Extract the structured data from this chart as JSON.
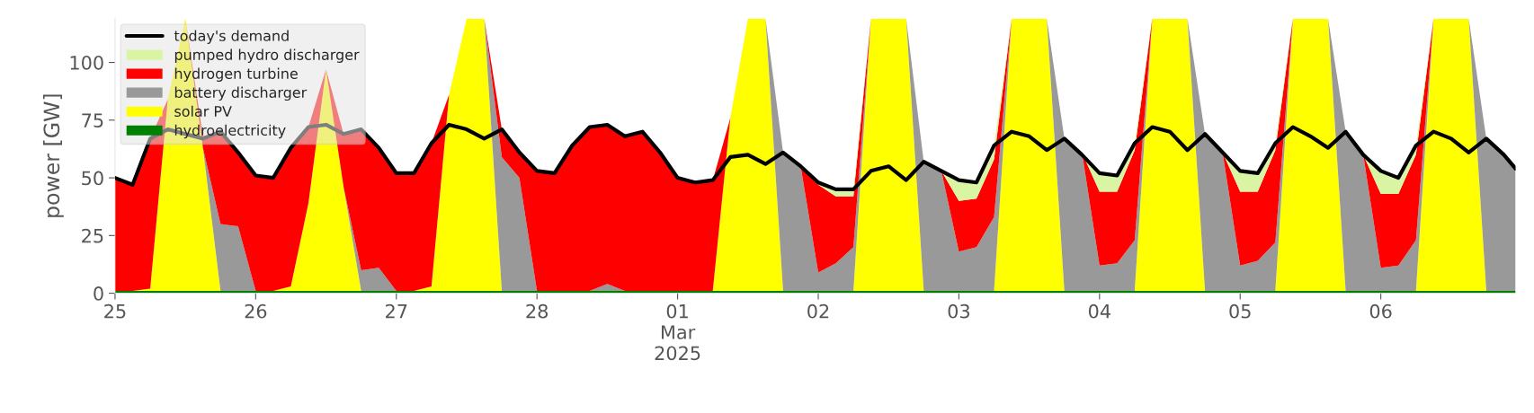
{
  "chart_data": {
    "type": "area",
    "stacked": true,
    "ylabel": "power [GW]",
    "x": [
      "2025-02-25T00:00",
      "2025-02-25T03:00",
      "2025-02-25T06:00",
      "2025-02-25T09:00",
      "2025-02-25T12:00",
      "2025-02-25T15:00",
      "2025-02-25T18:00",
      "2025-02-25T21:00",
      "2025-02-26T00:00",
      "2025-02-26T03:00",
      "2025-02-26T06:00",
      "2025-02-26T09:00",
      "2025-02-26T12:00",
      "2025-02-26T15:00",
      "2025-02-26T18:00",
      "2025-02-26T21:00",
      "2025-02-27T00:00",
      "2025-02-27T03:00",
      "2025-02-27T06:00",
      "2025-02-27T09:00",
      "2025-02-27T12:00",
      "2025-02-27T15:00",
      "2025-02-27T18:00",
      "2025-02-27T21:00",
      "2025-02-28T00:00",
      "2025-02-28T03:00",
      "2025-02-28T06:00",
      "2025-02-28T09:00",
      "2025-02-28T12:00",
      "2025-02-28T15:00",
      "2025-02-28T18:00",
      "2025-02-28T21:00",
      "2025-03-01T00:00",
      "2025-03-01T03:00",
      "2025-03-01T06:00",
      "2025-03-01T09:00",
      "2025-03-01T12:00",
      "2025-03-01T15:00",
      "2025-03-01T18:00",
      "2025-03-01T21:00",
      "2025-03-02T00:00",
      "2025-03-02T03:00",
      "2025-03-02T06:00",
      "2025-03-02T09:00",
      "2025-03-02T12:00",
      "2025-03-02T15:00",
      "2025-03-02T18:00",
      "2025-03-02T21:00",
      "2025-03-03T00:00",
      "2025-03-03T03:00",
      "2025-03-03T06:00",
      "2025-03-03T09:00",
      "2025-03-03T12:00",
      "2025-03-03T15:00",
      "2025-03-03T18:00",
      "2025-03-03T21:00",
      "2025-03-04T00:00",
      "2025-03-04T03:00",
      "2025-03-04T06:00",
      "2025-03-04T09:00",
      "2025-03-04T12:00",
      "2025-03-04T15:00",
      "2025-03-04T18:00",
      "2025-03-04T21:00",
      "2025-03-05T00:00",
      "2025-03-05T03:00",
      "2025-03-05T06:00",
      "2025-03-05T09:00",
      "2025-03-05T12:00",
      "2025-03-05T15:00",
      "2025-03-05T18:00",
      "2025-03-05T21:00",
      "2025-03-06T00:00",
      "2025-03-06T03:00",
      "2025-03-06T06:00",
      "2025-03-06T09:00",
      "2025-03-06T12:00",
      "2025-03-06T15:00",
      "2025-03-06T18:00",
      "2025-03-06T21:00",
      "2025-03-06T23:00"
    ],
    "series": [
      {
        "name": "hydroelectricity",
        "color": "#008000",
        "values": [
          1,
          1,
          1,
          1,
          1,
          1,
          1,
          1,
          1,
          1,
          1,
          1,
          1,
          1,
          1,
          1,
          1,
          1,
          1,
          1,
          1,
          1,
          1,
          1,
          1,
          1,
          1,
          1,
          1,
          1,
          1,
          1,
          1,
          1,
          1,
          1,
          1,
          1,
          1,
          1,
          1,
          1,
          1,
          1,
          1,
          1,
          1,
          1,
          1,
          1,
          1,
          1,
          1,
          1,
          1,
          1,
          1,
          1,
          1,
          1,
          1,
          1,
          1,
          1,
          1,
          1,
          1,
          1,
          1,
          1,
          1,
          1,
          1,
          1,
          1,
          1,
          1,
          1,
          1,
          1,
          1
        ]
      },
      {
        "name": "solar PV",
        "color": "#ffff00",
        "values": [
          null,
          0,
          1,
          83,
          118,
          62,
          0,
          null,
          null,
          0,
          2,
          38,
          96,
          45,
          0,
          null,
          null,
          0,
          2,
          85,
          118,
          118,
          0,
          null,
          null,
          null,
          null,
          null,
          null,
          null,
          null,
          null,
          null,
          null,
          0,
          75,
          118,
          118,
          0,
          null,
          null,
          null,
          0,
          118,
          118,
          118,
          0,
          null,
          null,
          null,
          0,
          118,
          118,
          118,
          0,
          null,
          null,
          null,
          0,
          118,
          118,
          118,
          0,
          null,
          null,
          null,
          0,
          118,
          118,
          118,
          0,
          null,
          null,
          null,
          0,
          118,
          118,
          118,
          0,
          null,
          null
        ]
      },
      {
        "name": "battery discharger",
        "color": "#999999",
        "values": [
          null,
          null,
          null,
          null,
          null,
          0,
          29,
          28,
          0,
          null,
          null,
          null,
          null,
          0,
          9,
          10,
          0,
          null,
          null,
          null,
          null,
          0,
          58,
          49,
          0,
          null,
          null,
          0,
          3,
          0,
          null,
          null,
          null,
          null,
          null,
          null,
          null,
          0,
          60,
          54,
          8,
          12,
          19,
          0,
          null,
          0,
          56,
          52,
          17,
          19,
          32,
          0,
          null,
          0,
          66,
          60,
          11,
          12,
          22,
          0,
          null,
          0,
          68,
          60,
          11,
          13,
          21,
          0,
          null,
          0,
          69,
          59,
          10,
          11,
          22,
          0,
          null,
          0,
          66,
          59,
          53
        ]
      },
      {
        "name": "hydrogen turbine",
        "color": "#ff0000",
        "values": [
          49,
          46,
          65,
          0,
          0,
          5,
          40,
          32,
          50,
          49,
          61,
          33,
          0,
          23,
          61,
          52,
          51,
          51,
          62,
          0,
          null,
          0,
          12,
          12,
          52,
          51,
          63,
          71,
          69,
          67,
          69,
          60,
          49,
          47,
          48,
          0,
          null,
          null,
          null,
          0,
          38,
          29,
          22,
          0,
          null,
          null,
          null,
          0,
          22,
          21,
          25,
          0,
          null,
          null,
          null,
          0,
          32,
          31,
          39,
          0,
          null,
          null,
          null,
          0,
          32,
          30,
          40,
          0,
          null,
          null,
          null,
          0,
          32,
          31,
          37,
          0,
          null,
          null,
          null,
          null,
          null
        ]
      },
      {
        "name": "pumped hydro discharger",
        "color": "#d9f5a3",
        "values": [
          null,
          null,
          null,
          null,
          null,
          null,
          null,
          null,
          null,
          null,
          null,
          null,
          null,
          null,
          null,
          null,
          null,
          null,
          null,
          null,
          null,
          null,
          null,
          null,
          null,
          null,
          null,
          null,
          null,
          null,
          null,
          null,
          null,
          null,
          null,
          null,
          null,
          null,
          null,
          0,
          2,
          3,
          3,
          0,
          null,
          null,
          null,
          0,
          8,
          7,
          6,
          0,
          null,
          null,
          null,
          0,
          8,
          7,
          3,
          0,
          null,
          null,
          null,
          0,
          9,
          7,
          3,
          0,
          null,
          null,
          null,
          0,
          10,
          7,
          4,
          0,
          null,
          null,
          null,
          null,
          null
        ]
      },
      {
        "name": "today's demand",
        "type": "line",
        "color": "#000000",
        "values": [
          50,
          47,
          67,
          71,
          69,
          67,
          70,
          61,
          51,
          50,
          63,
          72,
          73,
          69,
          71,
          63,
          52,
          52,
          65,
          73,
          71,
          67,
          71,
          61,
          53,
          52,
          64,
          72,
          73,
          68,
          70,
          61,
          50,
          48,
          49,
          59,
          60,
          56,
          61,
          55,
          48,
          45,
          45,
          53,
          55,
          49,
          57,
          53,
          49,
          48,
          64,
          70,
          68,
          62,
          67,
          60,
          52,
          51,
          65,
          72,
          70,
          62,
          69,
          61,
          53,
          52,
          65,
          72,
          68,
          63,
          70,
          60,
          53,
          50,
          64,
          70,
          67,
          61,
          67,
          60,
          54
        ]
      }
    ],
    "xlim": [
      "2025-02-25T00:00",
      "2025-03-06T23:00"
    ],
    "xticks": [
      {
        "value": "2025-02-25",
        "label": "25"
      },
      {
        "value": "2025-02-26",
        "label": "26"
      },
      {
        "value": "2025-02-27",
        "label": "27"
      },
      {
        "value": "2025-02-28",
        "label": "28"
      },
      {
        "value": "2025-03-01",
        "label": "01\nMar\n2025"
      },
      {
        "value": "2025-03-02",
        "label": "02"
      },
      {
        "value": "2025-03-03",
        "label": "03"
      },
      {
        "value": "2025-03-04",
        "label": "04"
      },
      {
        "value": "2025-03-05",
        "label": "05"
      },
      {
        "value": "2025-03-06",
        "label": "06"
      }
    ],
    "ylim": [
      0,
      119
    ],
    "yticks": [
      0,
      25,
      50,
      75,
      100
    ],
    "grid": false,
    "legend": "top left"
  }
}
